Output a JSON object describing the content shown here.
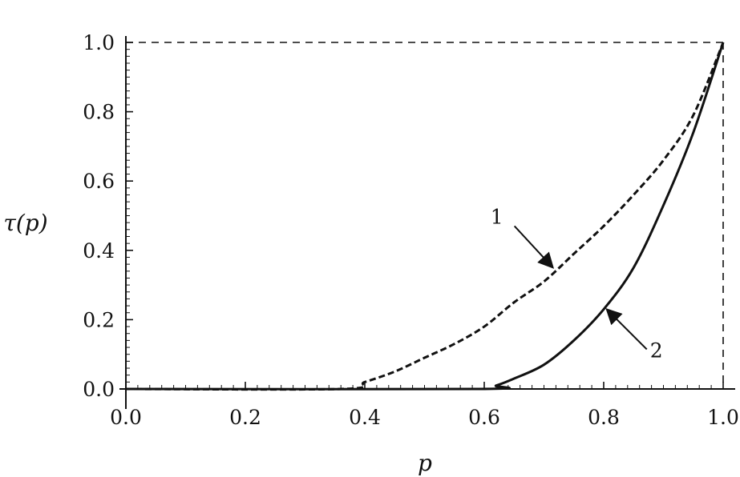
{
  "chart_data": {
    "type": "line",
    "title": "",
    "xlabel": "p",
    "ylabel": "τ(p)",
    "xlim": [
      0.0,
      1.0
    ],
    "ylim": [
      0.0,
      1.0
    ],
    "xticks": [
      "0.0",
      "0.2",
      "0.4",
      "0.6",
      "0.8",
      "1.0"
    ],
    "yticks": [
      "0.0",
      "0.2",
      "0.4",
      "0.6",
      "0.8",
      "1.0"
    ],
    "grid": false,
    "legend": "none",
    "reference_lines": [
      {
        "type": "horizontal",
        "y": 1.0,
        "style": "dashed"
      },
      {
        "type": "vertical",
        "x": 1.0,
        "style": "dashed"
      }
    ],
    "series": [
      {
        "style": "dashed",
        "color": "#111111",
        "x": [
          0.0,
          0.36,
          0.4,
          0.45,
          0.5,
          0.55,
          0.6,
          0.65,
          0.7,
          0.75,
          0.8,
          0.85,
          0.9,
          0.95,
          1.0
        ],
        "y": [
          0.0,
          0.0,
          0.02,
          0.05,
          0.09,
          0.13,
          0.18,
          0.25,
          0.31,
          0.39,
          0.47,
          0.56,
          0.66,
          0.79,
          1.0
        ]
      },
      {
        "style": "solid",
        "color": "#111111",
        "x": [
          0.0,
          0.59,
          0.62,
          0.65,
          0.7,
          0.75,
          0.8,
          0.85,
          0.9,
          0.95,
          1.0
        ],
        "y": [
          0.0,
          0.0,
          0.01,
          0.03,
          0.07,
          0.14,
          0.23,
          0.35,
          0.53,
          0.74,
          1.0
        ]
      }
    ],
    "annotations": [
      {
        "text": "1",
        "series": 0,
        "arrow_to": {
          "x": 0.715,
          "y": 0.35
        }
      },
      {
        "text": "2",
        "series": 1,
        "arrow_to": {
          "x": 0.805,
          "y": 0.23
        }
      }
    ]
  }
}
